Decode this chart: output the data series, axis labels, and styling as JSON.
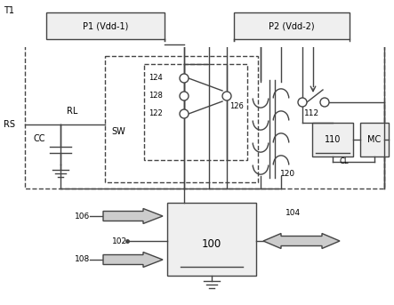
{
  "bg": "#ffffff",
  "lc": "#444444",
  "box_fc": "#efefef",
  "lw": 1.0,
  "fs": 7.0,
  "fig_w": 4.43,
  "fig_h": 3.43,
  "dpi": 100,
  "labels": {
    "T1": "T1",
    "P1": "P1 (Vdd-1)",
    "P2": "P2 (Vdd-2)",
    "RS": "RS",
    "RL": "RL",
    "CC": "CC",
    "SW": "SW",
    "n124": "124",
    "n128": "128",
    "n122": "122",
    "n126": "126",
    "n120": "120",
    "n112": "112",
    "n110": "110",
    "MC": "MC",
    "CL": "CL",
    "n106": "106",
    "n102": "102",
    "n108": "108",
    "n100": "100",
    "n104": "104"
  }
}
